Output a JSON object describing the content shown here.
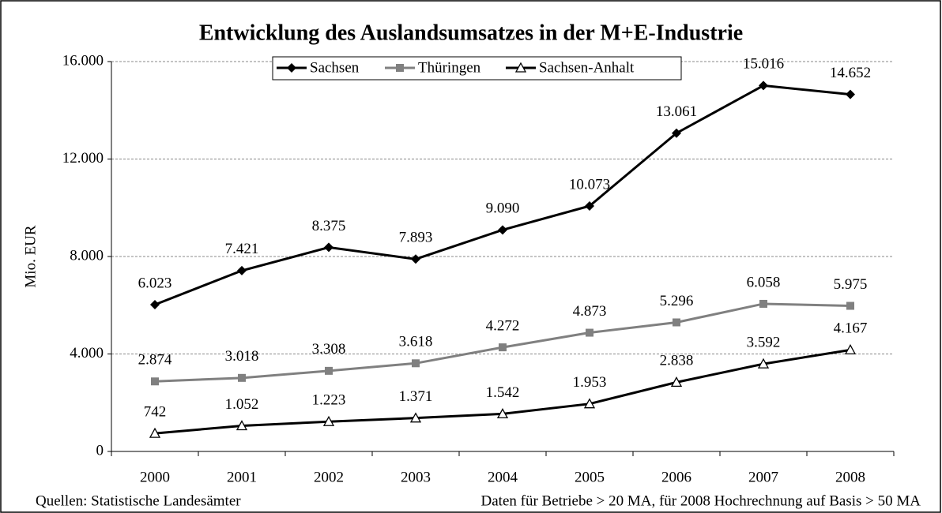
{
  "chart_data": {
    "type": "line",
    "title": "Entwicklung des Auslandsumsatzes in der M+E-Industrie",
    "y_label": "Mio. EUR",
    "source": "Quellen: Statistische Landesämter",
    "note": "Daten für Betriebe > 20 MA, für 2008 Hochrechnung auf Basis > 50 MA",
    "categories": [
      "2000",
      "2001",
      "2002",
      "2003",
      "2004",
      "2005",
      "2006",
      "2007",
      "2008"
    ],
    "series": [
      {
        "name": "Sachsen",
        "color": "#000000",
        "marker": "diamond",
        "values": [
          6023,
          7421,
          8375,
          7893,
          9090,
          10073,
          13061,
          15016,
          14652
        ],
        "value_labels": [
          "6.023",
          "7.421",
          "8.375",
          "7.893",
          "9.090",
          "10.073",
          "13.061",
          "15.016",
          "14.652"
        ]
      },
      {
        "name": "Thüringen",
        "color": "#808080",
        "marker": "square",
        "values": [
          2874,
          3018,
          3308,
          3618,
          4272,
          4873,
          5296,
          6058,
          5975
        ],
        "value_labels": [
          "2.874",
          "3.018",
          "3.308",
          "3.618",
          "4.272",
          "4.873",
          "5.296",
          "6.058",
          "5.975"
        ]
      },
      {
        "name": "Sachsen-Anhalt",
        "color": "#000000",
        "marker": "triangle",
        "values": [
          742,
          1052,
          1223,
          1371,
          1542,
          1953,
          2838,
          3592,
          4167
        ],
        "value_labels": [
          "742",
          "1.052",
          "1.223",
          "1.371",
          "1.542",
          "1.953",
          "2.838",
          "3.592",
          "4.167"
        ]
      }
    ],
    "ylim": [
      0,
      16000
    ],
    "yticks": [
      0,
      {
        "value": 4000,
        "label": "4.000"
      },
      {
        "value": 8000,
        "label": "8.000"
      },
      {
        "value": 12000,
        "label": "12.000"
      },
      {
        "value": 16000,
        "label": "16.000"
      }
    ],
    "grid": true,
    "legend": "top"
  }
}
